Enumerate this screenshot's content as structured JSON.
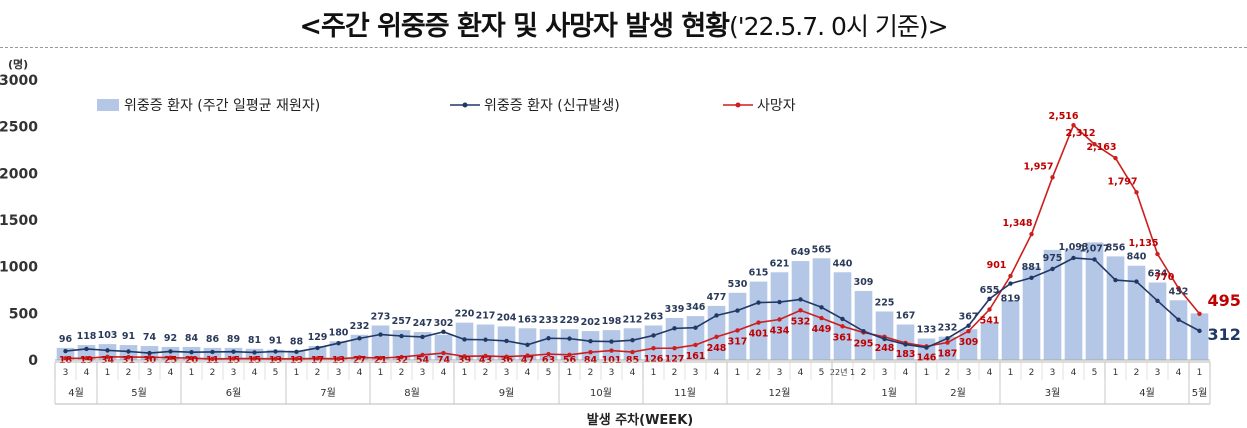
{
  "title": {
    "main": "<주간 위중증 환자 및 사망자 발생 현황",
    "sub": "('22.5.7. 0시 기준)>"
  },
  "chart_data": {
    "type": "bar+line",
    "y_unit": "(명)",
    "ylim": [
      0,
      3000
    ],
    "yticks": [
      0,
      500,
      1000,
      1500,
      2000,
      2500,
      3000
    ],
    "xlabel": "발생 주차(WEEK)",
    "legend": {
      "bar": "위중증 환자 (주간 일평균 재원자)",
      "severe": "위중증 환자 (신규발생)",
      "death": "사망자"
    },
    "weeks": [
      "3",
      "4",
      "1",
      "2",
      "3",
      "4",
      "1",
      "2",
      "3",
      "4",
      "5",
      "1",
      "2",
      "3",
      "4",
      "1",
      "2",
      "3",
      "4",
      "1",
      "2",
      "3",
      "4",
      "5",
      "1",
      "2",
      "3",
      "4",
      "1",
      "2",
      "3",
      "4",
      "1",
      "2",
      "3",
      "4",
      "5",
      "22년 1",
      "2",
      "3",
      "4",
      "1",
      "2",
      "3",
      "4",
      "1",
      "2",
      "3",
      "4",
      "5",
      "1",
      "2",
      "3",
      "4",
      "1"
    ],
    "months": [
      {
        "label": "4월",
        "start": 0,
        "end": 1
      },
      {
        "label": "5월",
        "start": 2,
        "end": 5
      },
      {
        "label": "6월",
        "start": 6,
        "end": 10
      },
      {
        "label": "7월",
        "start": 11,
        "end": 14
      },
      {
        "label": "8월",
        "start": 15,
        "end": 18
      },
      {
        "label": "9월",
        "start": 19,
        "end": 23
      },
      {
        "label": "10월",
        "start": 24,
        "end": 27
      },
      {
        "label": "11월",
        "start": 28,
        "end": 31
      },
      {
        "label": "12월",
        "start": 32,
        "end": 36
      },
      {
        "label": "1월",
        "start": 37,
        "end": 40
      },
      {
        "label": "2월",
        "start": 41,
        "end": 44
      },
      {
        "label": "3월",
        "start": 45,
        "end": 49
      },
      {
        "label": "4월",
        "start": 50,
        "end": 53
      },
      {
        "label": "5월",
        "start": 54,
        "end": 54
      }
    ],
    "bar_values": [
      130,
      160,
      170,
      160,
      150,
      140,
      140,
      130,
      130,
      120,
      110,
      100,
      150,
      200,
      270,
      370,
      320,
      300,
      270,
      400,
      380,
      360,
      340,
      330,
      330,
      310,
      320,
      340,
      370,
      450,
      470,
      580,
      720,
      840,
      940,
      1060,
      1090,
      940,
      740,
      520,
      380,
      230,
      250,
      330,
      400,
      640,
      1000,
      1180,
      1190,
      1260,
      1110,
      1010,
      830,
      640,
      500
    ],
    "severe": [
      96,
      118,
      103,
      91,
      74,
      92,
      84,
      86,
      89,
      81,
      91,
      88,
      129,
      180,
      232,
      273,
      257,
      247,
      302,
      220,
      217,
      204,
      163,
      233,
      229,
      202,
      198,
      212,
      263,
      339,
      346,
      477,
      530,
      615,
      621,
      649,
      565,
      440,
      309,
      225,
      167,
      133,
      232,
      367,
      655,
      819,
      881,
      975,
      1093,
      1077,
      856,
      840,
      634,
      432,
      312
    ],
    "deaths": [
      18,
      19,
      34,
      31,
      30,
      25,
      20,
      11,
      15,
      15,
      13,
      13,
      17,
      13,
      27,
      21,
      32,
      54,
      74,
      39,
      43,
      36,
      47,
      63,
      56,
      84,
      101,
      85,
      126,
      127,
      161,
      248,
      317,
      401,
      434,
      532,
      449,
      361,
      295,
      248,
      183,
      146,
      187,
      309,
      541,
      901,
      1348,
      1957,
      2516,
      2312,
      2163,
      1797,
      1135,
      770,
      495
    ],
    "end_labels": {
      "deaths": "495",
      "severe": "312"
    }
  }
}
